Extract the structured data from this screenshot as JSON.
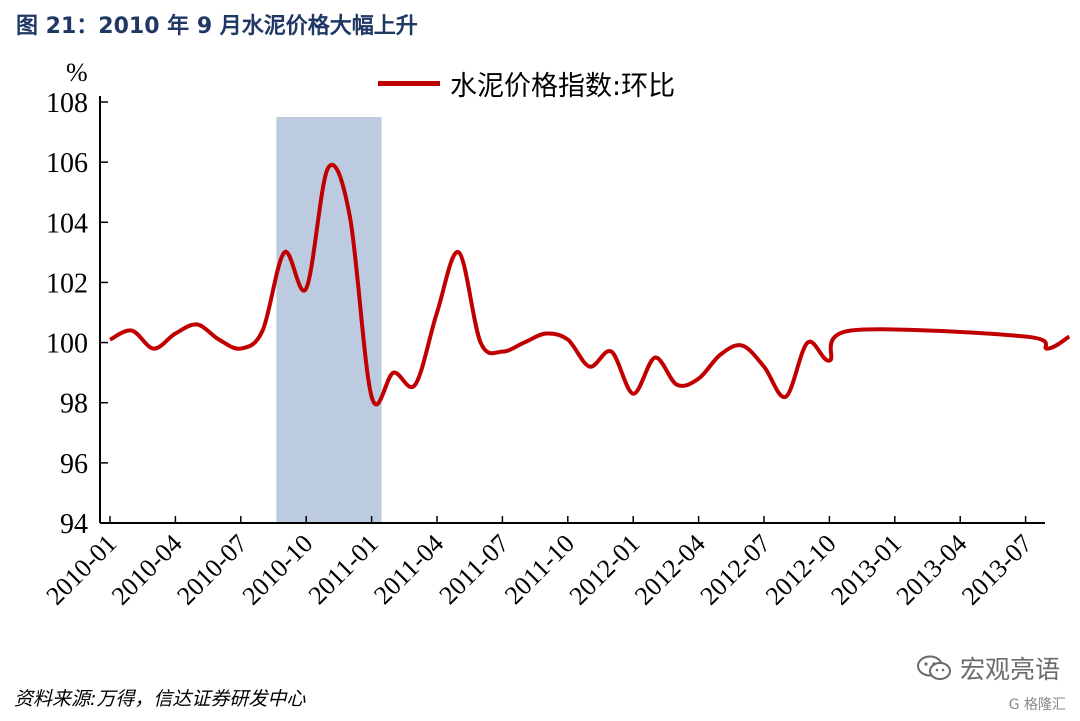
{
  "figure_title": "图 21：2010 年 9 月水泥价格大幅上升",
  "unit": "%",
  "source": "资料来源:万得，信达证券研发中心",
  "watermark": {
    "text": "宏观亮语",
    "icon": "wechat-icon",
    "sub_text": "G 格隆汇"
  },
  "colors": {
    "series": "#c00000",
    "highlight": "#bccbe0",
    "title": "#1f3864"
  },
  "chart_data": {
    "type": "line",
    "title": "",
    "xlabel": "",
    "ylabel": "%",
    "ylim": [
      94,
      108
    ],
    "y_ticks": [
      94,
      96,
      98,
      100,
      102,
      104,
      106,
      108
    ],
    "x_ticks": [
      "2010-01",
      "2010-04",
      "2010-07",
      "2010-10",
      "2011-01",
      "2011-04",
      "2011-07",
      "2011-10",
      "2012-01",
      "2012-04",
      "2012-07",
      "2012-10",
      "2013-01",
      "2013-04",
      "2013-07"
    ],
    "legend_position": "top-center",
    "grid": false,
    "highlight_range": [
      "2010-09",
      "2011-01"
    ],
    "series": [
      {
        "name": "水泥价格指数:环比",
        "x": [
          "2010-01",
          "2010-02",
          "2010-03",
          "2010-04",
          "2010-05",
          "2010-06",
          "2010-07",
          "2010-08",
          "2010-09",
          "2010-10",
          "2010-11",
          "2010-12",
          "2011-01",
          "2011-02",
          "2011-03",
          "2011-04",
          "2011-05",
          "2011-06",
          "2011-07",
          "2011-08",
          "2011-09",
          "2011-10",
          "2011-11",
          "2011-12",
          "2012-01",
          "2012-02",
          "2012-03",
          "2012-04",
          "2012-05",
          "2012-06",
          "2012-07",
          "2012-08",
          "2012-09",
          "2012-10",
          "2012-11",
          "2013-07",
          "2013-08",
          "2013-09"
        ],
        "values": [
          100.1,
          100.4,
          99.8,
          100.3,
          100.6,
          100.1,
          99.8,
          100.4,
          103.0,
          101.8,
          105.8,
          104.2,
          98.2,
          99.0,
          98.6,
          101.0,
          103.0,
          100.0,
          99.7,
          100.0,
          100.3,
          100.1,
          99.2,
          99.7,
          98.3,
          99.5,
          98.6,
          98.8,
          99.6,
          99.9,
          99.2,
          98.2,
          100.0,
          99.4,
          100.4,
          100.2,
          99.8,
          100.2
        ]
      }
    ]
  }
}
